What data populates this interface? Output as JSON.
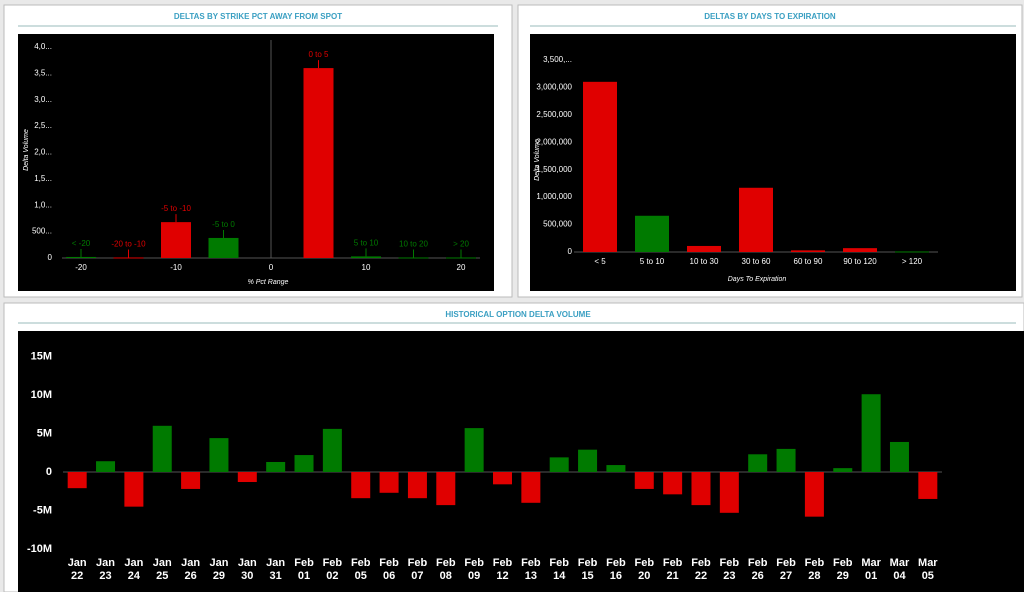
{
  "chart_data": [
    {
      "type": "bar",
      "title": "DELTAS BY STRIKE PCT AWAY FROM SPOT",
      "x_label": "% Pct Range",
      "y_label": "Delta Volume",
      "categories": [
        "< -20",
        "-20 to -10",
        "-5 to -10",
        "-5 to 0",
        "0 to 5",
        "5 to 10",
        "10 to 20",
        "> 20"
      ],
      "x": [
        -20,
        -15,
        -10,
        -5,
        5,
        10,
        15,
        20
      ],
      "values": [
        20000,
        10000,
        680000,
        380000,
        3600000,
        30000,
        10000,
        10000
      ],
      "colors": [
        "#007a00",
        "#e00000",
        "#e00000",
        "#007a00",
        "#e00000",
        "#007a00",
        "#007a00",
        "#007a00"
      ],
      "xlim": [
        -22,
        22
      ],
      "xticks": [
        -20,
        -10,
        0,
        10,
        20
      ],
      "ylim": [
        0,
        4000000
      ],
      "yticks": [
        0,
        {
          "value": 500000,
          "label": "500..."
        },
        {
          "value": 1000000,
          "label": "1,0..."
        },
        {
          "value": 1500000,
          "label": "1,5..."
        },
        {
          "value": 2000000,
          "label": "2,0..."
        },
        {
          "value": 2500000,
          "label": "2,5..."
        },
        {
          "value": 3000000,
          "label": "3,0..."
        },
        {
          "value": 3500000,
          "label": "3,5..."
        },
        {
          "value": 4000000,
          "label": "4,0..."
        }
      ],
      "grid": false
    },
    {
      "type": "bar",
      "title": "DELTAS BY DAYS TO EXPIRATION",
      "x_label": "Days To Expiration",
      "y_label": "Delta Volume",
      "categories": [
        "< 5",
        "5 to 10",
        "10 to 30",
        "30 to 60",
        "60 to 90",
        "90 to 120",
        "> 120"
      ],
      "values": [
        3100000,
        660000,
        110000,
        1170000,
        30000,
        70000,
        10000
      ],
      "colors": [
        "#e00000",
        "#007a00",
        "#e00000",
        "#e00000",
        "#e00000",
        "#e00000",
        "#007a00"
      ],
      "ylim": [
        0,
        3800000
      ],
      "yticks": [
        0,
        {
          "value": 500000,
          "label": "500,000"
        },
        {
          "value": 1000000,
          "label": "1,000,000"
        },
        {
          "value": 1500000,
          "label": "1,500,000"
        },
        {
          "value": 2000000,
          "label": "2,000,000"
        },
        {
          "value": 2500000,
          "label": "2,500,000"
        },
        {
          "value": 3000000,
          "label": "3,000,000"
        },
        {
          "value": 3500000,
          "label": "3,500,..."
        }
      ],
      "grid": false
    },
    {
      "type": "bar",
      "title": "HISTORICAL OPTION DELTA VOLUME",
      "categories": [
        "Jan 22",
        "Jan 23",
        "Jan 24",
        "Jan 25",
        "Jan 26",
        "Jan 29",
        "Jan 30",
        "Jan 31",
        "Feb 01",
        "Feb 02",
        "Feb 05",
        "Feb 06",
        "Feb 07",
        "Feb 08",
        "Feb 09",
        "Feb 12",
        "Feb 13",
        "Feb 14",
        "Feb 15",
        "Feb 16",
        "Feb 20",
        "Feb 21",
        "Feb 22",
        "Feb 23",
        "Feb 26",
        "Feb 27",
        "Feb 28",
        "Feb 29",
        "Mar 01",
        "Mar 04",
        "Mar 05"
      ],
      "values": [
        -2100000,
        1400000,
        -4500000,
        6000000,
        -2200000,
        4400000,
        -1300000,
        1300000,
        2200000,
        5600000,
        -3400000,
        -2700000,
        -3400000,
        -4300000,
        5700000,
        -1600000,
        -4000000,
        1900000,
        2900000,
        900000,
        -2200000,
        -2900000,
        -4300000,
        -5300000,
        2300000,
        3000000,
        -5800000,
        500000,
        10100000,
        3900000,
        -3500000
      ],
      "positive_color": "#007a00",
      "negative_color": "#e00000",
      "ylim": [
        -11000000,
        16000000
      ],
      "yticks": [
        {
          "value": -10000000,
          "label": "-10M"
        },
        {
          "value": -5000000,
          "label": "-5M"
        },
        0,
        {
          "value": 5000000,
          "label": "5M"
        },
        {
          "value": 10000000,
          "label": "10M"
        },
        {
          "value": 15000000,
          "label": "15M"
        }
      ],
      "grid": false
    }
  ]
}
